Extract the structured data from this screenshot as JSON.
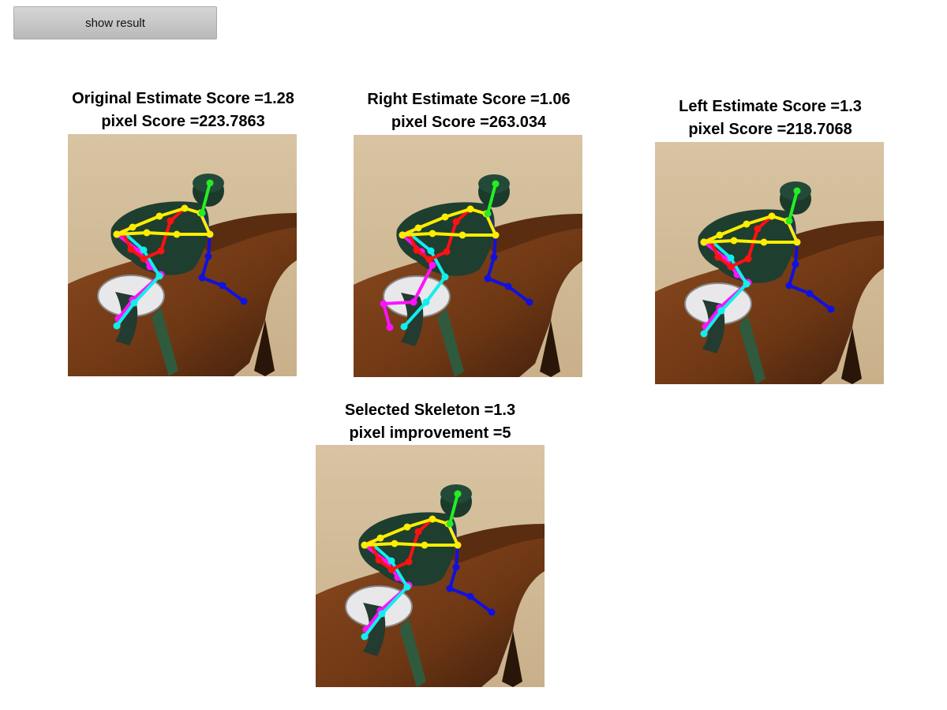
{
  "button": {
    "label": "show result"
  },
  "panels": [
    {
      "title_line1": "Original Estimate Score =1.28",
      "title_line2": "pixel Score =223.7863"
    },
    {
      "title_line1": "Right Estimate Score =1.06",
      "title_line2": "pixel Score =263.034"
    },
    {
      "title_line1": "Left Estimate Score =1.3",
      "title_line2": "pixel Score =218.7068"
    },
    {
      "title_line1": "Selected Skeleton =1.3",
      "title_line2": "pixel improvement =5"
    }
  ],
  "limb_colors": {
    "head": "#22ee22",
    "torso": "#ffee00",
    "right_arm": "#ff1111",
    "left_arm": "#1111dd",
    "right_leg": "#ff11ff",
    "left_leg": "#11eeee"
  }
}
